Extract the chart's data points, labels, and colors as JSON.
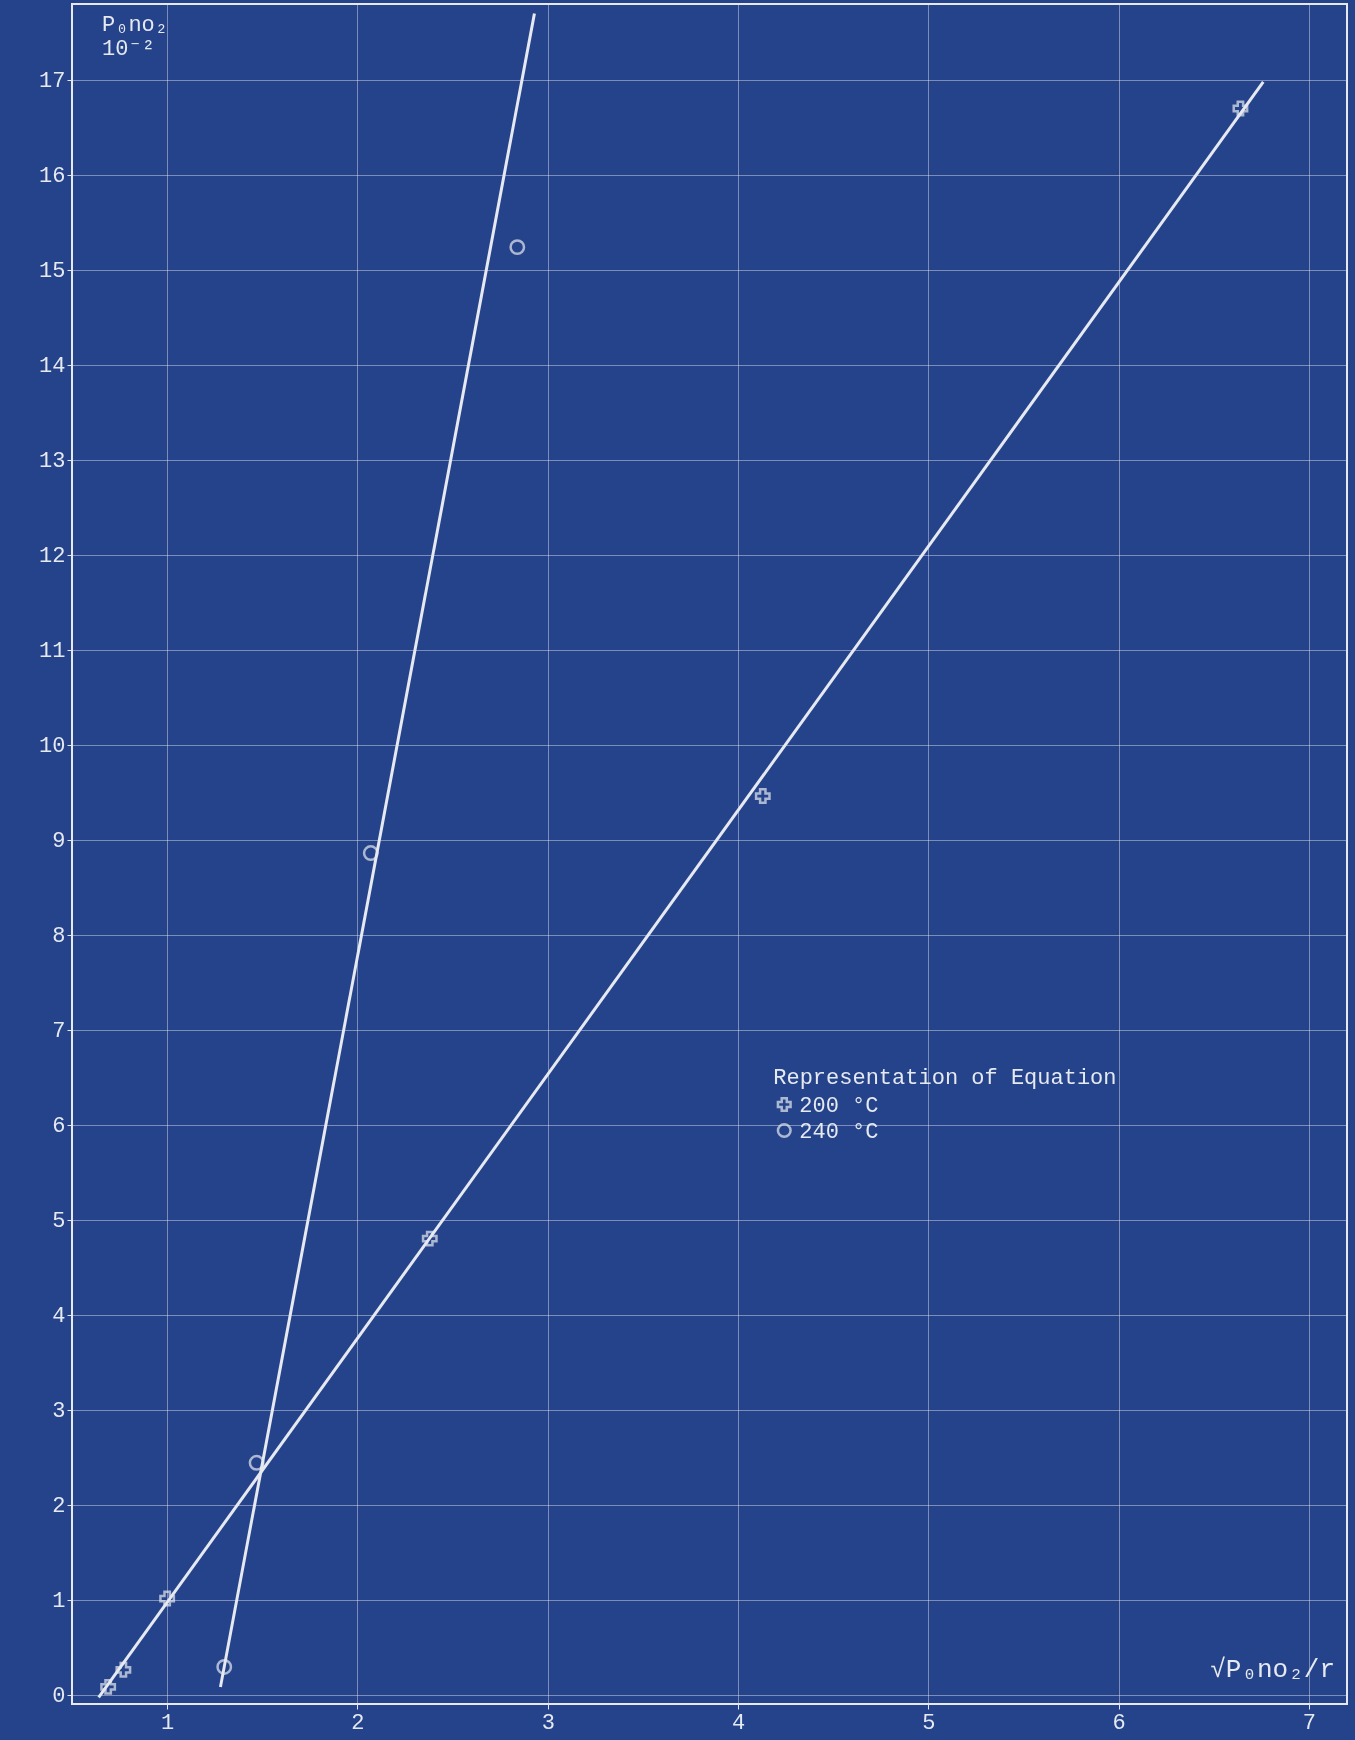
{
  "chart_data": {
    "type": "scatter",
    "xlabel": "√P₀no₂/r",
    "ylabel": "P₀no₂ 10⁻²",
    "legend_title": "Representation of Equation",
    "legend": "right",
    "grid": true,
    "xlim": [
      0.5,
      7.2
    ],
    "ylim": [
      -0.1,
      17.8
    ],
    "xticks": [
      1,
      2,
      3,
      4,
      5,
      6,
      7
    ],
    "yticks": [
      0,
      1,
      2,
      3,
      4,
      5,
      6,
      7,
      8,
      9,
      10,
      11,
      12,
      13,
      14,
      15,
      16,
      17
    ],
    "series": [
      {
        "name": "200 °C",
        "marker": "cross",
        "color": "#e6e9f0",
        "x": [
          0.69,
          0.77,
          1.0,
          2.38,
          4.13,
          6.64
        ],
        "values": [
          0.08,
          0.26,
          1.01,
          4.8,
          9.46,
          16.7
        ]
      },
      {
        "name": "240 °C",
        "marker": "circle",
        "color": "#e6e9f0",
        "x": [
          1.3,
          1.47,
          2.07,
          2.84
        ],
        "values": [
          0.29,
          2.44,
          8.86,
          15.24
        ]
      },
      {
        "type": "line",
        "marker": "none",
        "color": "#e6e9f0",
        "x": [
          0.64,
          6.76
        ],
        "values": [
          -0.03,
          16.98
        ]
      },
      {
        "type": "line",
        "marker": "none",
        "color": "#e6e9f0",
        "x": [
          1.28,
          2.93
        ],
        "values": [
          0.08,
          17.7
        ]
      }
    ]
  }
}
